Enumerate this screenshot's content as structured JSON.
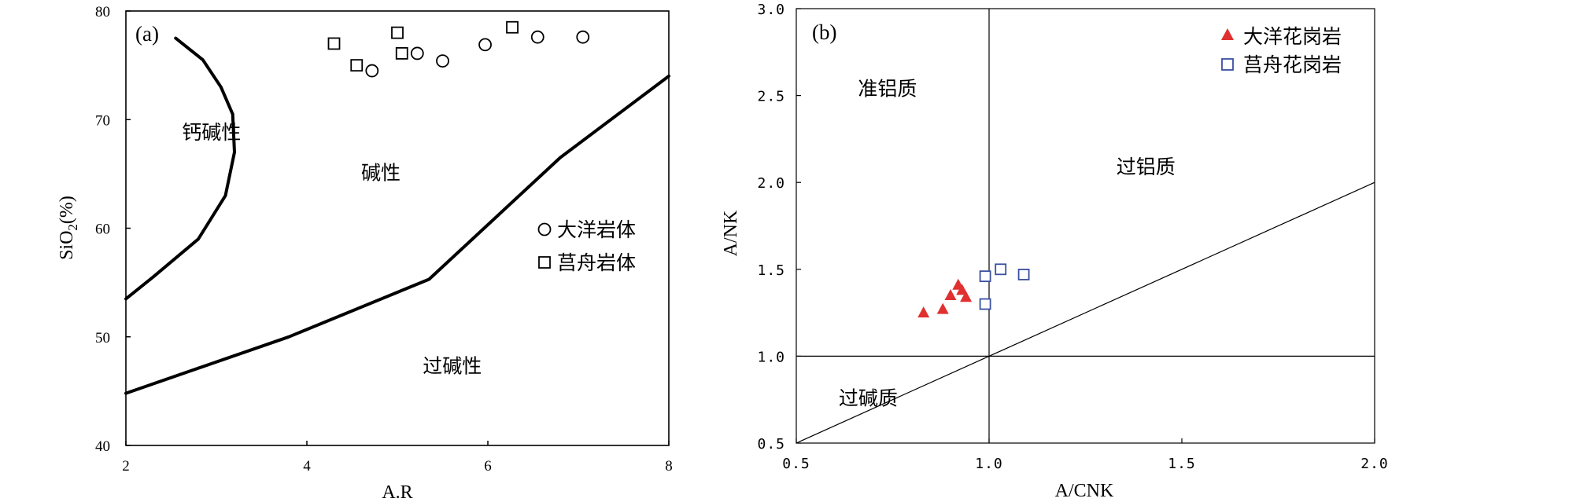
{
  "chart_data": [
    {
      "type": "scatter",
      "panel_label": "(a)",
      "xlabel": "A.R",
      "ylabel": "SiO2(%)",
      "ylabel_main": "SiO",
      "ylabel_sub": "2",
      "ylabel_rest": "(%)",
      "xlim": [
        2,
        8
      ],
      "ylim": [
        40,
        80
      ],
      "xticks": [
        2,
        4,
        6,
        8
      ],
      "yticks": [
        40,
        50,
        60,
        70,
        80
      ],
      "boundaries": [
        {
          "name": "calc-alkaline-alkaline",
          "points": [
            [
              2.55,
              77.5
            ],
            [
              2.85,
              75.5
            ],
            [
              3.05,
              73
            ],
            [
              3.18,
              70.5
            ],
            [
              3.2,
              67
            ],
            [
              3.1,
              63
            ],
            [
              2.8,
              59
            ],
            [
              2.3,
              55.5
            ],
            [
              2.0,
              53.5
            ]
          ]
        },
        {
          "name": "alkaline-peralkaline",
          "points": [
            [
              2.0,
              44.8
            ],
            [
              3.8,
              50
            ],
            [
              5.35,
              55.3
            ],
            [
              6.8,
              66.5
            ],
            [
              8.0,
              74
            ]
          ]
        }
      ],
      "regions": [
        {
          "label": "钙碱性",
          "x": 2.62,
          "y": 68.2
        },
        {
          "label": "碱性",
          "x": 4.6,
          "y": 64.5
        },
        {
          "label": "过碱性",
          "x": 5.28,
          "y": 46.7
        }
      ],
      "series": [
        {
          "name": "大洋岩体",
          "marker": "circle",
          "points": [
            [
              4.72,
              74.5
            ],
            [
              5.22,
              76.1
            ],
            [
              5.5,
              75.4
            ],
            [
              5.97,
              76.9
            ],
            [
              6.55,
              77.6
            ],
            [
              7.05,
              77.6
            ]
          ]
        },
        {
          "name": "莒舟岩体",
          "marker": "square",
          "points": [
            [
              4.3,
              77.0
            ],
            [
              4.55,
              75.0
            ],
            [
              5.0,
              78.0
            ],
            [
              5.05,
              76.1
            ],
            [
              6.27,
              78.5
            ]
          ]
        }
      ]
    },
    {
      "type": "scatter",
      "panel_label": "(b)",
      "xlabel": "A/CNK",
      "ylabel": "A/NK",
      "xlim": [
        0.5,
        2.0
      ],
      "ylim": [
        0.5,
        3.0
      ],
      "xticks": [
        "0.5",
        "1.0",
        "1.5",
        "2.0"
      ],
      "yticks": [
        "0.5",
        "1.0",
        "1.5",
        "2.0",
        "2.5",
        "3.0"
      ],
      "reference_lines": [
        {
          "points": [
            [
              1.0,
              0.5
            ],
            [
              1.0,
              3.0
            ]
          ]
        },
        {
          "points": [
            [
              0.5,
              1.0
            ],
            [
              2.0,
              1.0
            ]
          ]
        },
        {
          "points": [
            [
              0.5,
              0.5
            ],
            [
              2.0,
              2.0
            ]
          ]
        }
      ],
      "regions": [
        {
          "label": "准铝质",
          "x": 0.66,
          "y": 2.5
        },
        {
          "label": "过铝质",
          "x": 1.33,
          "y": 2.05
        },
        {
          "label": "过碱质",
          "x": 0.61,
          "y": 0.72
        }
      ],
      "series": [
        {
          "name": "大洋花岗岩",
          "marker": "triangle",
          "color": "#e03030",
          "points": [
            [
              0.83,
              1.25
            ],
            [
              0.88,
              1.27
            ],
            [
              0.9,
              1.35
            ],
            [
              0.92,
              1.41
            ],
            [
              0.93,
              1.38
            ],
            [
              0.94,
              1.34
            ]
          ]
        },
        {
          "name": "莒舟花岗岩",
          "marker": "square",
          "color": "#3a4fa0",
          "points": [
            [
              0.99,
              1.46
            ],
            [
              1.03,
              1.5
            ],
            [
              1.09,
              1.47
            ],
            [
              0.99,
              1.3
            ]
          ]
        }
      ]
    }
  ]
}
